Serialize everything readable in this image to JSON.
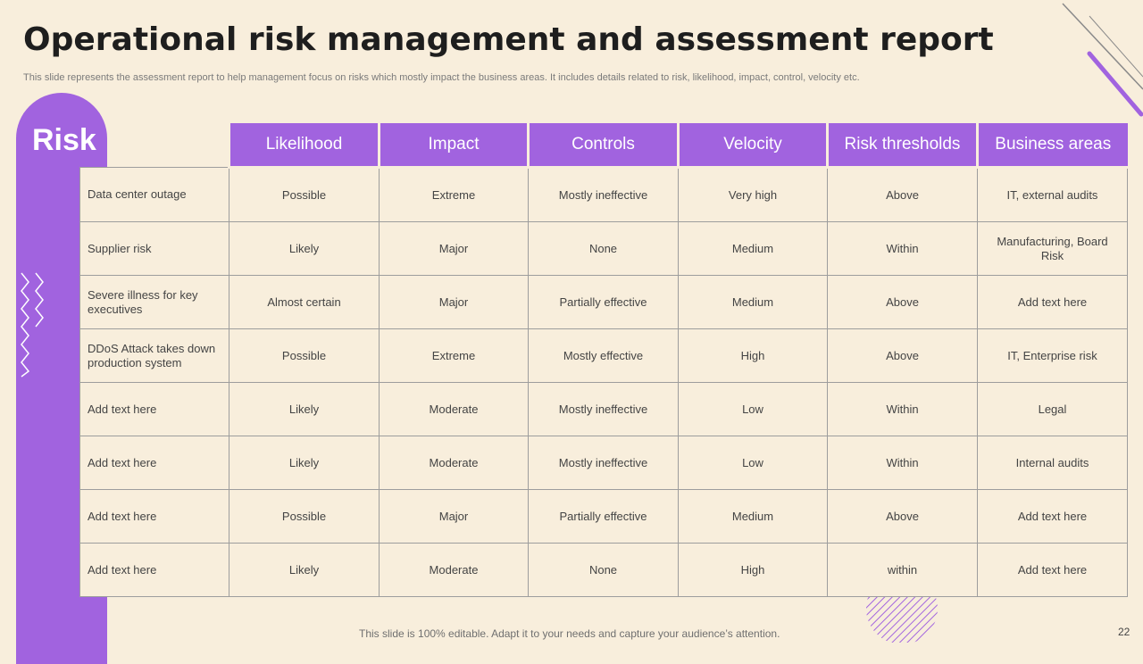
{
  "slide": {
    "title": "Operational risk management and assessment report",
    "subtitle": "This slide represents the assessment report to help management focus on risks which mostly impact the business areas. It includes details related to risk, likelihood, impact, control, velocity etc.",
    "risk_label": "Risk",
    "footer": "This slide is 100% editable. Adapt it to your needs and capture your audience’s attention.",
    "page_number": "22",
    "colors": {
      "accent": "#a163df",
      "background": "#f8eedc",
      "title": "#1e1e1e"
    }
  },
  "table": {
    "headers": [
      "Likelihood",
      "Impact",
      "Controls",
      "Velocity",
      "Risk thresholds",
      "Business areas"
    ],
    "rows": [
      [
        "Data center outage",
        "Possible",
        "Extreme",
        "Mostly ineffective",
        "Very high",
        "Above",
        "IT,  external audits"
      ],
      [
        "Supplier risk",
        "Likely",
        "Major",
        "None",
        "Medium",
        "Within",
        "Manufacturing,  Board Risk"
      ],
      [
        "Severe  illness for key executives",
        "Almost certain",
        "Major",
        "Partially effective",
        "Medium",
        "Above",
        "Add text here"
      ],
      [
        "DDoS Attack takes down production system",
        "Possible",
        "Extreme",
        "Mostly effective",
        "High",
        "Above",
        "IT,  Enterprise risk"
      ],
      [
        "Add text here",
        "Likely",
        "Moderate",
        "Mostly ineffective",
        "Low",
        "Within",
        "Legal"
      ],
      [
        "Add text here",
        "Likely",
        "Moderate",
        "Mostly ineffective",
        "Low",
        "Within",
        "Internal  audits"
      ],
      [
        "Add text here",
        "Possible",
        "Major",
        "Partially effective",
        "Medium",
        "Above",
        "Add text here"
      ],
      [
        "Add text here",
        "Likely",
        "Moderate",
        "None",
        "High",
        "within",
        "Add text here"
      ]
    ]
  }
}
